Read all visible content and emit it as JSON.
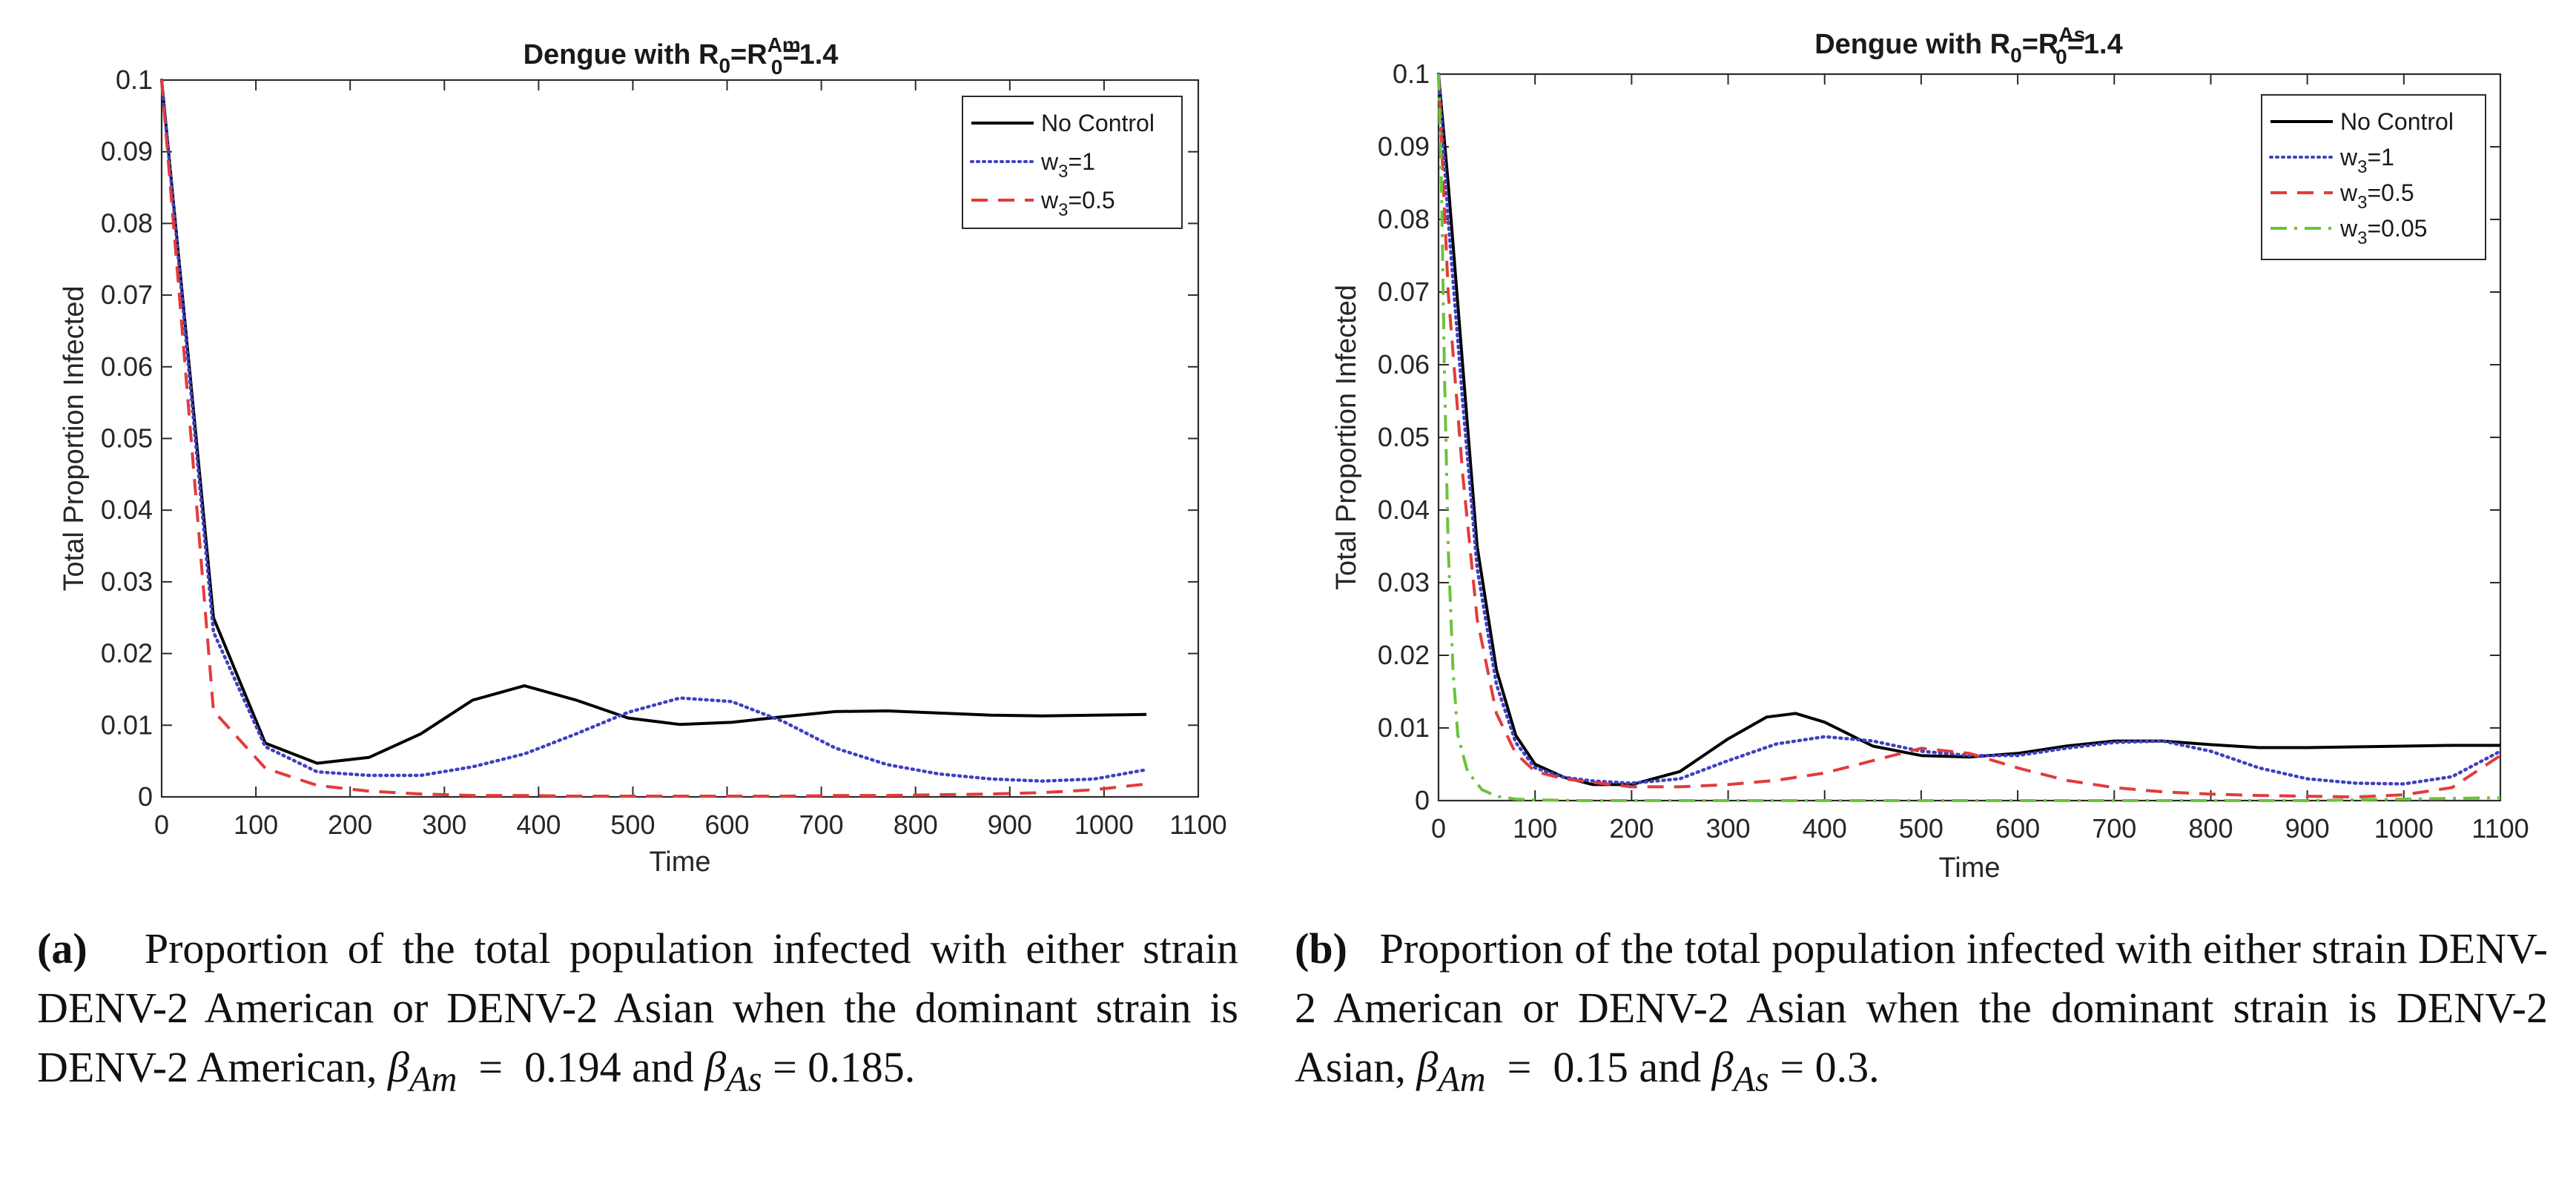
{
  "chart_data": [
    {
      "type": "line",
      "panel": "a",
      "title": "Dengue with R0=R0^Am=1.4",
      "title_parts": {
        "prefix": "Dengue with R",
        "sub1": "0",
        "eq": "=R",
        "sup": "Am",
        "sub2": "0",
        "suffix": "=1.4"
      },
      "xlabel": "Time",
      "ylabel": "Total Proportion Infected",
      "xlim": [
        0,
        1100
      ],
      "ylim": [
        0,
        0.1
      ],
      "xticks": [
        0,
        100,
        200,
        300,
        400,
        500,
        600,
        700,
        800,
        900,
        1000,
        1100
      ],
      "yticks": [
        0,
        0.01,
        0.02,
        0.03,
        0.04,
        0.05,
        0.06,
        0.07,
        0.08,
        0.09,
        0.1
      ],
      "ytick_labels": [
        "0",
        "0.01",
        "0.02",
        "0.03",
        "0.04",
        "0.05",
        "0.06",
        "0.07",
        "0.08",
        "0.09",
        "0.1"
      ],
      "legend_position": "top-right",
      "series": [
        {
          "name": "No Control",
          "label": {
            "main": "No Control"
          },
          "color": "#000000",
          "style": "solid",
          "x": [
            0,
            55,
            110,
            165,
            220,
            275,
            330,
            385,
            440,
            495,
            550,
            605,
            660,
            715,
            770,
            825,
            880,
            935,
            990,
            1045
          ],
          "y": [
            0.1,
            0.025,
            0.0075,
            0.0047,
            0.0055,
            0.0088,
            0.0135,
            0.0155,
            0.0135,
            0.011,
            0.0101,
            0.0104,
            0.0112,
            0.0119,
            0.012,
            0.0117,
            0.0114,
            0.0113,
            0.0114,
            0.0115
          ]
        },
        {
          "name": "w3=1",
          "label": {
            "main": "w",
            "sub": "3",
            "rest": "=1"
          },
          "color": "#4040c0",
          "style": "dotted",
          "x": [
            0,
            55,
            110,
            165,
            220,
            275,
            330,
            385,
            440,
            495,
            550,
            605,
            660,
            715,
            770,
            825,
            880,
            935,
            990,
            1045
          ],
          "y": [
            0.1,
            0.023,
            0.007,
            0.0035,
            0.003,
            0.003,
            0.0042,
            0.006,
            0.0088,
            0.0118,
            0.0138,
            0.0133,
            0.0105,
            0.0068,
            0.0045,
            0.0032,
            0.0025,
            0.0022,
            0.0025,
            0.0038
          ]
        },
        {
          "name": "w3=0.5",
          "label": {
            "main": "w",
            "sub": "3",
            "rest": "=0.5"
          },
          "color": "#e23b3b",
          "style": "dashed",
          "x": [
            0,
            55,
            110,
            165,
            220,
            275,
            330,
            385,
            440,
            495,
            550,
            605,
            660,
            715,
            770,
            825,
            880,
            935,
            990,
            1045
          ],
          "y": [
            0.1,
            0.012,
            0.004,
            0.0016,
            0.0008,
            0.0004,
            0.0002,
            0.0002,
            0.0001,
            0.0001,
            0.0001,
            0.0001,
            0.0001,
            0.0002,
            0.0002,
            0.0003,
            0.0004,
            0.0006,
            0.001,
            0.0018
          ]
        }
      ]
    },
    {
      "type": "line",
      "panel": "b",
      "title": "Dengue with R0=R0^As=1.4",
      "title_parts": {
        "prefix": "Dengue with R",
        "sub1": "0",
        "eq": "=R",
        "sup": "As",
        "sub2": "0",
        "suffix": "=1.4"
      },
      "xlabel": "Time",
      "ylabel": "Total Proportion Infected",
      "xlim": [
        0,
        1100
      ],
      "ylim": [
        0,
        0.1
      ],
      "xticks": [
        0,
        100,
        200,
        300,
        400,
        500,
        600,
        700,
        800,
        900,
        1000,
        1100
      ],
      "yticks": [
        0,
        0.01,
        0.02,
        0.03,
        0.04,
        0.05,
        0.06,
        0.07,
        0.08,
        0.09,
        0.1
      ],
      "ytick_labels": [
        "0",
        "0.01",
        "0.02",
        "0.03",
        "0.04",
        "0.05",
        "0.06",
        "0.07",
        "0.08",
        "0.09",
        "0.1"
      ],
      "legend_position": "top-right",
      "series": [
        {
          "name": "No Control",
          "label": {
            "main": "No Control"
          },
          "color": "#000000",
          "style": "solid",
          "x": [
            0,
            10,
            25,
            40,
            60,
            80,
            100,
            130,
            160,
            200,
            250,
            300,
            340,
            370,
            400,
            450,
            500,
            550,
            600,
            650,
            700,
            750,
            800,
            850,
            900,
            950,
            1000,
            1050,
            1100
          ],
          "y": [
            0.1,
            0.085,
            0.06,
            0.035,
            0.018,
            0.009,
            0.005,
            0.0032,
            0.0022,
            0.0022,
            0.004,
            0.0085,
            0.0115,
            0.012,
            0.0108,
            0.0075,
            0.0062,
            0.006,
            0.0065,
            0.0075,
            0.0082,
            0.0082,
            0.0077,
            0.0073,
            0.0073,
            0.0074,
            0.0075,
            0.0076,
            0.0076
          ]
        },
        {
          "name": "w3=1",
          "label": {
            "main": "w",
            "sub": "3",
            "rest": "=1"
          },
          "color": "#4040c0",
          "style": "dotted",
          "x": [
            0,
            10,
            25,
            40,
            60,
            80,
            100,
            130,
            160,
            200,
            250,
            300,
            350,
            400,
            450,
            500,
            550,
            600,
            650,
            700,
            750,
            800,
            850,
            900,
            950,
            1000,
            1050,
            1100
          ],
          "y": [
            0.1,
            0.08,
            0.055,
            0.032,
            0.016,
            0.008,
            0.0045,
            0.0032,
            0.0027,
            0.0024,
            0.003,
            0.0055,
            0.0078,
            0.0088,
            0.0082,
            0.0068,
            0.0062,
            0.0062,
            0.0072,
            0.008,
            0.0082,
            0.0068,
            0.0045,
            0.003,
            0.0024,
            0.0023,
            0.0033,
            0.0068
          ]
        },
        {
          "name": "w3=0.5",
          "label": {
            "main": "w",
            "sub": "3",
            "rest": "=0.5"
          },
          "color": "#e23b3b",
          "style": "dashed",
          "x": [
            0,
            10,
            25,
            40,
            60,
            80,
            100,
            130,
            160,
            200,
            250,
            300,
            350,
            400,
            450,
            500,
            550,
            600,
            650,
            700,
            750,
            800,
            850,
            900,
            950,
            1000,
            1050,
            1100
          ],
          "y": [
            0.1,
            0.07,
            0.045,
            0.025,
            0.012,
            0.0065,
            0.004,
            0.003,
            0.0025,
            0.0019,
            0.0019,
            0.0022,
            0.0028,
            0.0038,
            0.0055,
            0.0072,
            0.0065,
            0.0045,
            0.0028,
            0.0018,
            0.0012,
            0.0009,
            0.0007,
            0.0006,
            0.0005,
            0.0008,
            0.0018,
            0.0062
          ]
        },
        {
          "name": "w3=0.05",
          "label": {
            "main": "w",
            "sub": "3",
            "rest": "=0.05"
          },
          "color": "#6cc23c",
          "style": "dashdot",
          "x": [
            0,
            3,
            6,
            10,
            15,
            20,
            30,
            45,
            60,
            80,
            100,
            150,
            200,
            300,
            400,
            500,
            600,
            700,
            800,
            900,
            1000,
            1100
          ],
          "y": [
            0.1,
            0.085,
            0.06,
            0.035,
            0.018,
            0.009,
            0.004,
            0.0015,
            0.0006,
            0.0002,
            0.0001,
            0.0,
            0.0,
            0.0,
            0.0,
            0.0,
            0.0,
            0.0,
            0.0,
            0.0,
            0.0002,
            0.0004
          ]
        }
      ]
    }
  ],
  "captions": [
    {
      "letter": "(a)",
      "text": "Proportion of the total population infected with either strain DENV-2 American or DENV-2 Asian when the dominant strain is DENV-2 American,",
      "beta_am": "0.194",
      "beta_as": "0.185",
      "tail": "."
    },
    {
      "letter": "(b)",
      "text": "Proportion of the total population infected with either strain DENV-2 American or DENV-2 Asian when the dominant strain is DENV-2 Asian,",
      "beta_am": "0.15",
      "beta_as": "0.3",
      "tail": "."
    }
  ],
  "caption_symbols": {
    "beta": "β",
    "sub_am": "Am",
    "sub_as": "As",
    "equals": "=",
    "and": "and"
  }
}
